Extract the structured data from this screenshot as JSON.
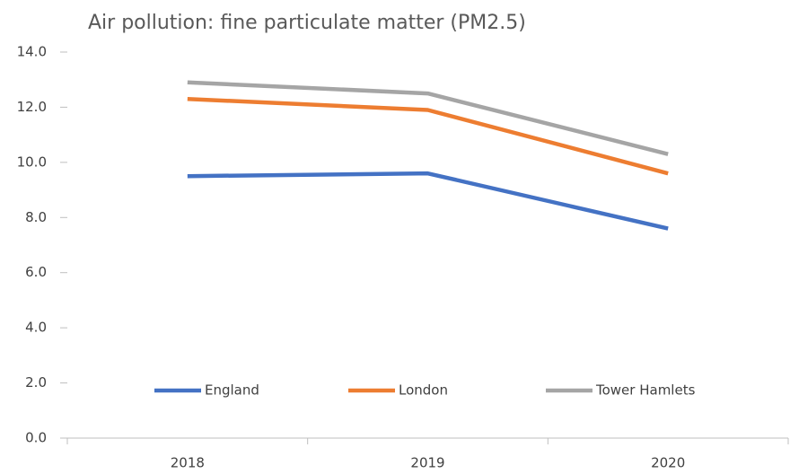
{
  "chart_data": {
    "type": "line",
    "title": "Air pollution: fine particulate matter (PM2.5)",
    "categories": [
      "2018",
      "2019",
      "2020"
    ],
    "series": [
      {
        "name": "England",
        "color": "#4472c4",
        "values": [
          9.5,
          9.6,
          7.6
        ]
      },
      {
        "name": "London",
        "color": "#ed7d31",
        "values": [
          12.3,
          11.9,
          9.6
        ]
      },
      {
        "name": "Tower Hamlets",
        "color": "#a5a5a5",
        "values": [
          12.9,
          12.5,
          10.3
        ]
      }
    ],
    "ylim": [
      0,
      14
    ],
    "yticks": [
      {
        "value": 0,
        "label": "0.0"
      },
      {
        "value": 2,
        "label": "2.0"
      },
      {
        "value": 4,
        "label": "4.0"
      },
      {
        "value": 6,
        "label": "6.0"
      },
      {
        "value": 8,
        "label": "8.0"
      },
      {
        "value": 10,
        "label": "10.0"
      },
      {
        "value": 12,
        "label": "12.0"
      },
      {
        "value": 14,
        "label": "14.0"
      }
    ],
    "legend": "bottom"
  }
}
